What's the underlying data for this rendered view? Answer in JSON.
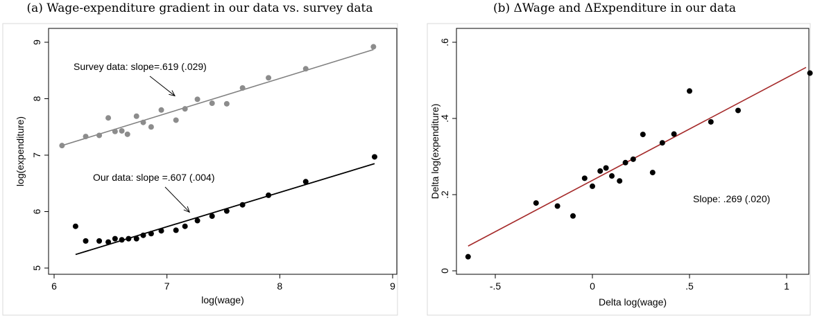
{
  "colors": {
    "survey_point": "#8c8c8c",
    "survey_line": "#808080",
    "our_point": "#000000",
    "our_line": "#000000",
    "delta_point": "#000000",
    "delta_line": "#a52a2a",
    "frame": "#000000",
    "plot_background": "#ffffff"
  },
  "chart_data": [
    {
      "type": "scatter",
      "title": "(a) Wage-expenditure gradient in our data vs. survey data",
      "xlabel": "log(wage)",
      "ylabel": "log(expenditure)",
      "xlim": [
        6,
        9
      ],
      "ylim": [
        5,
        9
      ],
      "xticks": [
        "6",
        "7",
        "8",
        "9"
      ],
      "yticks": [
        "5",
        "6",
        "7",
        "8",
        "9"
      ],
      "grid": false,
      "series": [
        {
          "key": "survey",
          "x": [
            6.07,
            6.28,
            6.4,
            6.48,
            6.54,
            6.6,
            6.65,
            6.73,
            6.79,
            6.86,
            6.95,
            7.08,
            7.16,
            7.27,
            7.4,
            7.53,
            7.67,
            7.9,
            8.23,
            8.83
          ],
          "y": [
            7.17,
            7.33,
            7.35,
            7.66,
            7.42,
            7.43,
            7.37,
            7.69,
            7.58,
            7.5,
            7.8,
            7.62,
            7.82,
            7.99,
            7.92,
            7.91,
            8.19,
            8.37,
            8.53,
            8.92
          ],
          "fit": [
            [
              6.07,
              7.17
            ],
            [
              8.83,
              8.87
            ]
          ]
        },
        {
          "key": "ours",
          "x": [
            6.19,
            6.28,
            6.4,
            6.48,
            6.54,
            6.6,
            6.66,
            6.73,
            6.79,
            6.86,
            6.95,
            7.08,
            7.16,
            7.27,
            7.4,
            7.53,
            7.67,
            7.9,
            8.23,
            8.84
          ],
          "y": [
            5.74,
            5.48,
            5.48,
            5.46,
            5.52,
            5.5,
            5.52,
            5.52,
            5.58,
            5.61,
            5.66,
            5.67,
            5.74,
            5.84,
            5.92,
            6.01,
            6.12,
            6.29,
            6.53,
            6.97
          ],
          "fit": [
            [
              6.19,
              5.24
            ],
            [
              8.84,
              6.85
            ]
          ]
        }
      ],
      "annotations": [
        {
          "text": "Survey data: slope=.619 (.029)",
          "arrow_to": [
            7.07,
            8.05
          ]
        },
        {
          "text": "Our data: slope =.607 (.004)",
          "arrow_to": [
            7.2,
            5.99
          ]
        }
      ]
    },
    {
      "type": "scatter",
      "title": "(b) ΔWage and ΔExpenditure in our data",
      "xlabel": "Delta log(wage)",
      "ylabel": "Delta log(expenditure)",
      "xlim": [
        -0.65,
        1.12
      ],
      "ylim": [
        0,
        0.6
      ],
      "xticks": [
        "-.5",
        "0",
        ".5",
        "1"
      ],
      "yticks": [
        "0",
        ".2",
        ".4",
        ".6"
      ],
      "grid": false,
      "series": [
        {
          "key": "delta",
          "x": [
            -0.64,
            -0.29,
            -0.18,
            -0.1,
            -0.04,
            0.0,
            0.04,
            0.07,
            0.1,
            0.14,
            0.17,
            0.21,
            0.26,
            0.31,
            0.36,
            0.42,
            0.5,
            0.61,
            0.75,
            1.12
          ],
          "y": [
            0.037,
            0.178,
            0.17,
            0.144,
            0.243,
            0.222,
            0.262,
            0.27,
            0.249,
            0.236,
            0.284,
            0.293,
            0.358,
            0.258,
            0.336,
            0.359,
            0.472,
            0.391,
            0.421,
            0.519
          ],
          "fit": [
            [
              -0.64,
              0.065
            ],
            [
              1.1,
              0.534
            ]
          ]
        }
      ],
      "annotations": [
        {
          "text": "Slope: .269 (.020)"
        }
      ]
    }
  ]
}
